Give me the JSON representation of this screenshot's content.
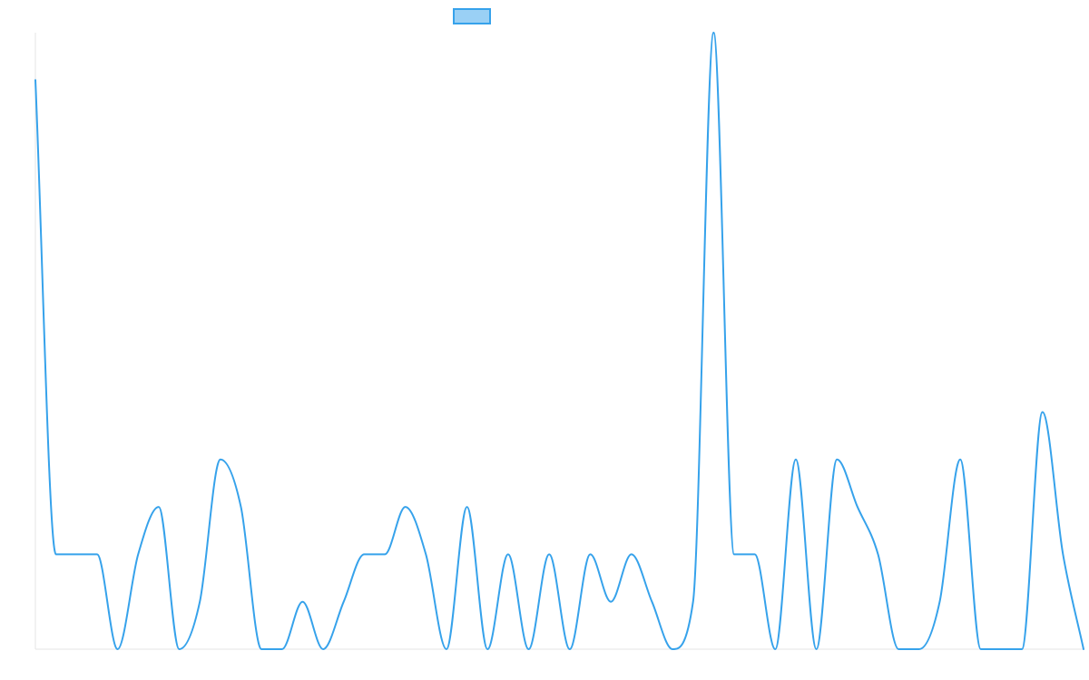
{
  "chart_data": {
    "type": "line",
    "title": "",
    "xlabel": "",
    "ylabel": "",
    "legend": {
      "placement": "top-center",
      "entries": [
        ""
      ]
    },
    "grid": false,
    "x": [
      0,
      1,
      2,
      3,
      4,
      5,
      6,
      7,
      8,
      9,
      10,
      11,
      12,
      13,
      14,
      15,
      16,
      17,
      18,
      19,
      20,
      21,
      22,
      23,
      24,
      25,
      26,
      27,
      28,
      29,
      30,
      31,
      32,
      33,
      34,
      35,
      36,
      37,
      38,
      39,
      40,
      41,
      42,
      43,
      44,
      45,
      46,
      47,
      48,
      49,
      50,
      51
    ],
    "ylim": [
      0,
      13
    ],
    "series": [
      {
        "name": "",
        "color": "#36a2eb",
        "fill": "#9ad0f5",
        "values": [
          12,
          2,
          2,
          2,
          0,
          2,
          3,
          0,
          1,
          4,
          3,
          0,
          0,
          1,
          0,
          1,
          2,
          2,
          3,
          2,
          0,
          3,
          0,
          2,
          0,
          2,
          0,
          2,
          1,
          2,
          1,
          0,
          1,
          13,
          2,
          2,
          0,
          4,
          0,
          4,
          3,
          2,
          0,
          0,
          1,
          4,
          0,
          0,
          0,
          5,
          2,
          0
        ]
      }
    ]
  }
}
